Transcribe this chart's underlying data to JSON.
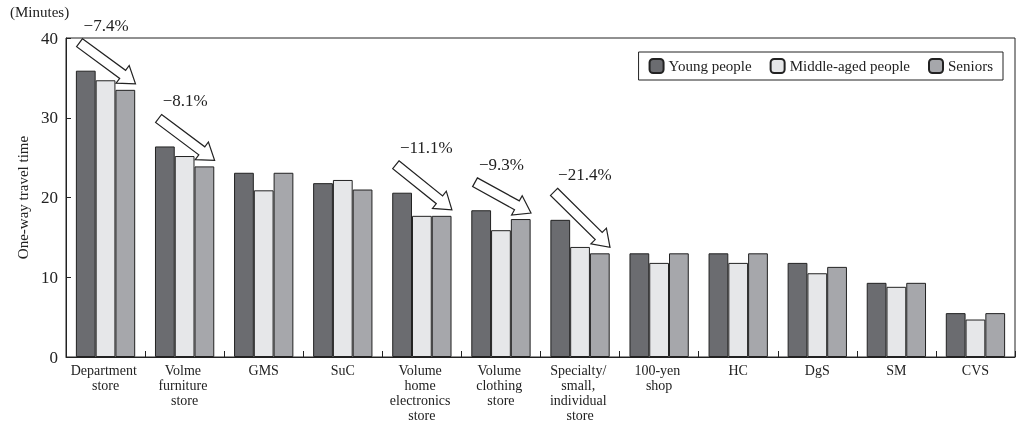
{
  "chart_data": {
    "type": "bar",
    "ylabel": "One-way travel time",
    "categories": [
      "Department store",
      "Volme furniture store",
      "GMS",
      "SuC",
      "Volume home electronics store",
      "Volume clothing store",
      "Specialty/ small, individual store",
      "100-yen shop",
      "HC",
      "DgS",
      "SM",
      "CVS"
    ],
    "series": [
      {
        "name": "Young people",
        "color": "#6b6c70",
        "values": [
          35.9,
          26.4,
          23.1,
          21.8,
          20.6,
          18.4,
          17.2,
          13.0,
          13.0,
          11.8,
          9.3,
          5.5
        ]
      },
      {
        "name": "Middle-aged people",
        "color": "#e6e7e9",
        "values": [
          34.7,
          25.2,
          20.9,
          22.2,
          17.7,
          15.9,
          13.8,
          11.8,
          11.8,
          10.5,
          8.8,
          4.7
        ]
      },
      {
        "name": "Seniors",
        "color": "#a6a7ab",
        "values": [
          33.5,
          23.9,
          23.1,
          21.0,
          17.7,
          17.3,
          13.0,
          13.0,
          13.0,
          11.3,
          9.3,
          5.5
        ]
      }
    ],
    "ylim": [
      0,
      40
    ],
    "yticks": [
      0,
      10,
      20,
      30,
      40
    ],
    "grid": false,
    "legend": "top right",
    "annotations": [
      "(Minutes)",
      "−7.4%",
      "−8.1%",
      "−11.1%",
      "−9.3%",
      "−21.4%"
    ]
  }
}
